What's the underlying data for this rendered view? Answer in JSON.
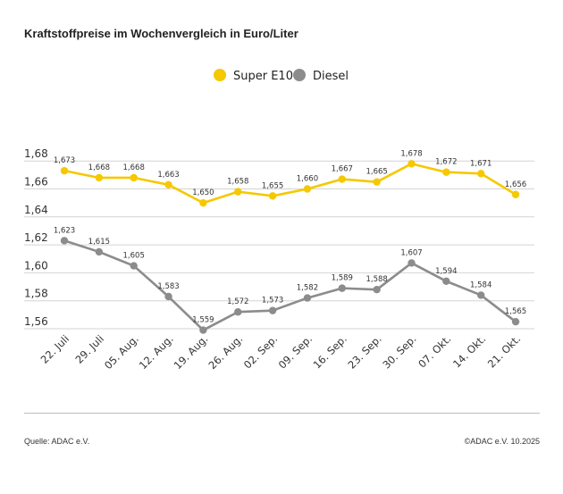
{
  "title": "Kraftstoffpreise im Wochenvergleich in Euro/Liter",
  "source": "Quelle: ADAC e.V.",
  "copyright": "©ADAC e.V. 10.2025",
  "chart_data": {
    "type": "line",
    "title": "Kraftstoffpreise im Wochenvergleich in Euro/Liter",
    "xlabel": "",
    "ylabel": "",
    "categories": [
      "22. Juli",
      "29. Juli",
      "05. Aug.",
      "12. Aug.",
      "19. Aug.",
      "26. Aug.",
      "02. Sep.",
      "09. Sep.",
      "16. Sep.",
      "23. Sep.",
      "30. Sep.",
      "07. Okt.",
      "14. Okt.",
      "21. Okt."
    ],
    "ylim": [
      1.55,
      1.68
    ],
    "yticks": [
      "1,56",
      "1,58",
      "1,60",
      "1,62",
      "1,64",
      "1,66",
      "1,68"
    ],
    "grid": true,
    "legend_position": "top-center",
    "series": [
      {
        "name": "Super E10",
        "color": "#f5c800",
        "values": [
          1.673,
          1.668,
          1.668,
          1.663,
          1.65,
          1.658,
          1.655,
          1.66,
          1.667,
          1.665,
          1.678,
          1.672,
          1.671,
          1.656
        ],
        "labels": [
          "1,673",
          "1,668",
          "1,668",
          "1,663",
          "1,650",
          "1,658",
          "1,655",
          "1,660",
          "1,667",
          "1,665",
          "1,678",
          "1,672",
          "1,671",
          "1,656"
        ]
      },
      {
        "name": "Diesel",
        "color": "#8c8c8c",
        "values": [
          1.623,
          1.615,
          1.605,
          1.583,
          1.559,
          1.572,
          1.573,
          1.582,
          1.589,
          1.588,
          1.607,
          1.594,
          1.584,
          1.565
        ],
        "labels": [
          "1,623",
          "1,615",
          "1,605",
          "1,583",
          "1,559",
          "1,572",
          "1,573",
          "1,582",
          "1,589",
          "1,588",
          "1,607",
          "1,594",
          "1,584",
          "1,565"
        ]
      }
    ]
  }
}
